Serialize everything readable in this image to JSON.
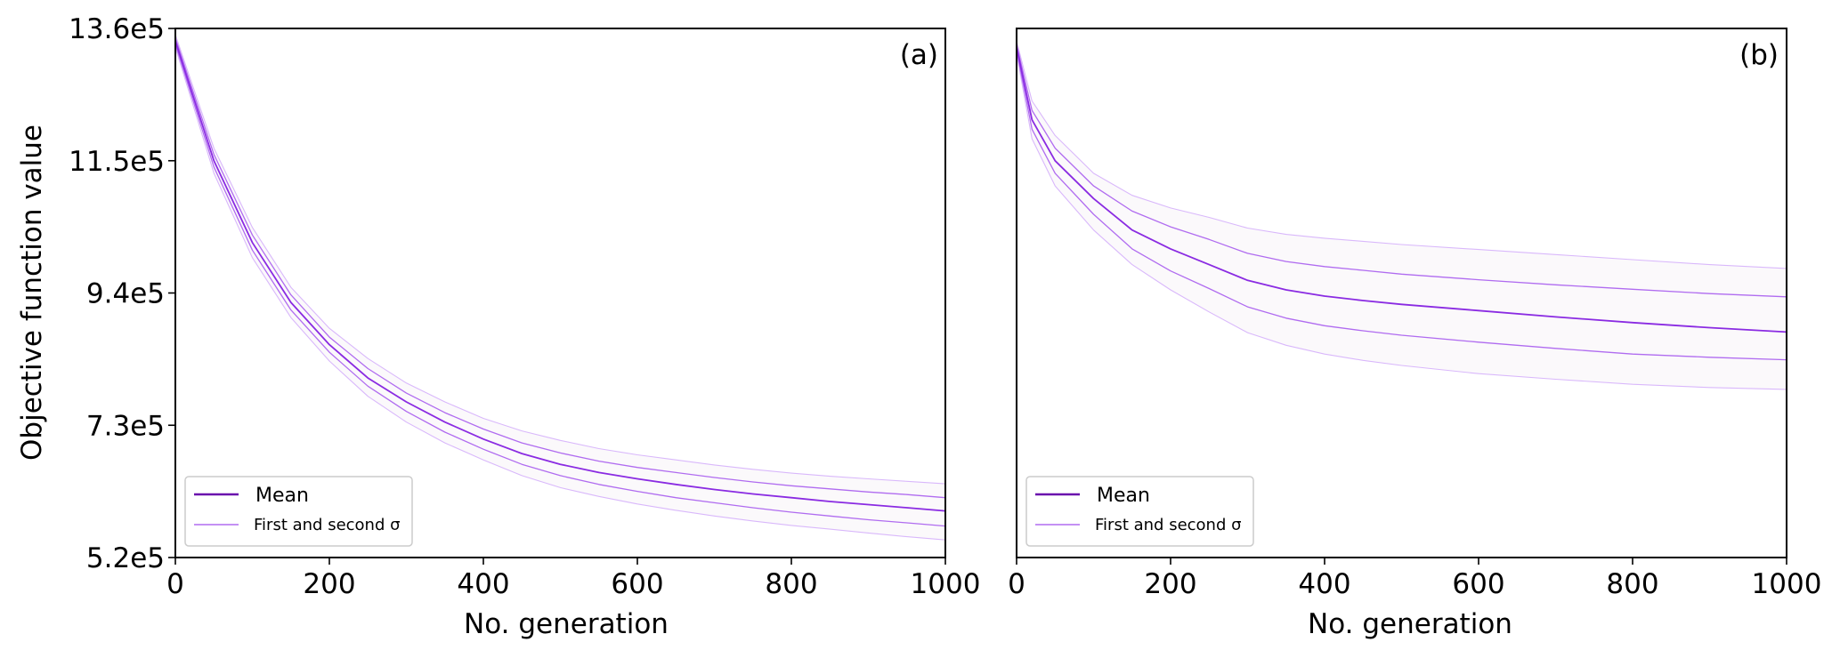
{
  "chart_data": [
    {
      "type": "line",
      "panel": "(a)",
      "xlabel": "No. generation",
      "ylabel": "Objective function value",
      "xlim": [
        0,
        1000
      ],
      "ylim": [
        520000,
        1360000
      ],
      "xticks": [
        0,
        200,
        400,
        600,
        800,
        1000
      ],
      "xtick_labels": [
        "0",
        "200",
        "400",
        "600",
        "800",
        "1000"
      ],
      "yticks": [
        520000,
        730000,
        940000,
        1150000,
        1360000
      ],
      "ytick_labels": [
        "5.2e5",
        "7.3e5",
        "9.4e5",
        "11.5e5",
        "13.6e5"
      ],
      "legend": {
        "position": "lower-left",
        "entries": [
          "Mean",
          "First and second σ"
        ]
      },
      "colors": {
        "mean": "#8a2be2",
        "sigma1": "#b06cf0",
        "sigma2": "#d9b8fb",
        "band": "#fbf9fb"
      },
      "x": [
        0,
        50,
        100,
        150,
        200,
        250,
        300,
        350,
        400,
        450,
        500,
        550,
        600,
        650,
        700,
        750,
        800,
        850,
        900,
        950,
        1000
      ],
      "series": [
        {
          "name": "Mean",
          "values": [
            1340000,
            1150000,
            1020000,
            925000,
            858000,
            805000,
            767000,
            735000,
            708000,
            685000,
            668000,
            655000,
            645000,
            636000,
            628000,
            621000,
            615000,
            609000,
            604000,
            599000,
            594000
          ]
        },
        {
          "name": "+1σ",
          "values": [
            1345000,
            1160000,
            1032000,
            937000,
            870000,
            820000,
            781000,
            750000,
            724000,
            702000,
            686000,
            673000,
            663000,
            655000,
            647000,
            640000,
            634000,
            629000,
            624000,
            620000,
            615000
          ]
        },
        {
          "name": "-1σ",
          "values": [
            1335000,
            1140000,
            1008000,
            913000,
            846000,
            792000,
            752000,
            719000,
            692000,
            668000,
            650000,
            636000,
            625000,
            615000,
            607000,
            599000,
            592000,
            586000,
            580000,
            575000,
            570000
          ]
        },
        {
          "name": "+2σ",
          "values": [
            1350000,
            1170000,
            1044000,
            949000,
            884000,
            836000,
            797000,
            767000,
            741000,
            721000,
            706000,
            693000,
            683000,
            675000,
            667000,
            660000,
            654000,
            649000,
            645000,
            641000,
            637000
          ]
        },
        {
          "name": "-2σ",
          "values": [
            1330000,
            1130000,
            996000,
            901000,
            832000,
            776000,
            735000,
            702000,
            675000,
            650000,
            631000,
            617000,
            605000,
            595000,
            586000,
            578000,
            571000,
            565000,
            559000,
            553000,
            548000
          ]
        }
      ]
    },
    {
      "type": "line",
      "panel": "(b)",
      "xlabel": "No. generation",
      "ylabel": "",
      "xlim": [
        0,
        1000
      ],
      "ylim": [
        520000,
        1360000
      ],
      "xticks": [
        0,
        200,
        400,
        600,
        800,
        1000
      ],
      "xtick_labels": [
        "0",
        "200",
        "400",
        "600",
        "800",
        "1000"
      ],
      "legend": {
        "position": "lower-left",
        "entries": [
          "Mean",
          "First and second σ"
        ]
      },
      "colors": {
        "mean": "#8a2be2",
        "sigma1": "#b06cf0",
        "sigma2": "#d9b8fb",
        "band": "#fbf9fb"
      },
      "x": [
        0,
        20,
        50,
        100,
        150,
        200,
        250,
        300,
        350,
        400,
        450,
        500,
        600,
        700,
        800,
        900,
        1000
      ],
      "series": [
        {
          "name": "Mean",
          "values": [
            1330000,
            1215000,
            1150000,
            1090000,
            1040000,
            1010000,
            985000,
            960000,
            945000,
            935000,
            928000,
            922000,
            912000,
            902000,
            893000,
            885000,
            878000
          ]
        },
        {
          "name": "+1σ",
          "values": [
            1335000,
            1230000,
            1170000,
            1110000,
            1070000,
            1045000,
            1025000,
            1003000,
            990000,
            982000,
            976000,
            970000,
            961000,
            953000,
            946000,
            939000,
            934000
          ]
        },
        {
          "name": "-1σ",
          "values": [
            1325000,
            1200000,
            1130000,
            1065000,
            1010000,
            975000,
            947000,
            918000,
            900000,
            888000,
            880000,
            873000,
            862000,
            852000,
            843000,
            838000,
            834000
          ]
        },
        {
          "name": "+2σ",
          "values": [
            1340000,
            1245000,
            1190000,
            1130000,
            1095000,
            1075000,
            1060000,
            1043000,
            1033000,
            1027000,
            1022000,
            1017000,
            1009000,
            1001000,
            993000,
            985000,
            979000
          ]
        },
        {
          "name": "-2σ",
          "values": [
            1320000,
            1185000,
            1110000,
            1040000,
            985000,
            945000,
            910000,
            877000,
            857000,
            843000,
            833000,
            825000,
            812000,
            803000,
            795000,
            790000,
            787000
          ]
        }
      ]
    }
  ]
}
